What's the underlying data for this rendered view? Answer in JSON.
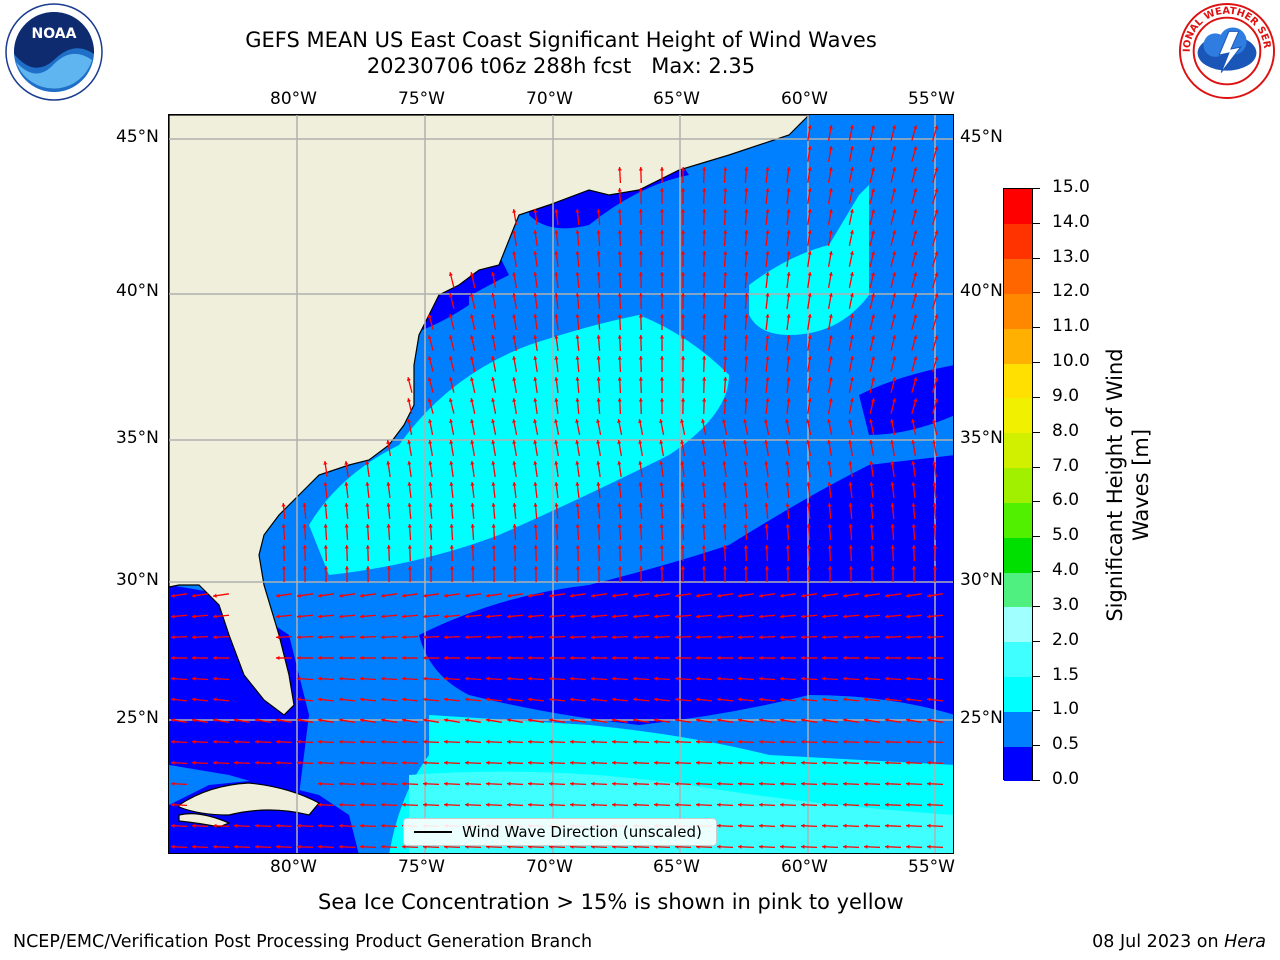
{
  "header": {
    "title_line1": "GEFS MEAN US East Coast Significant Height of Wind Waves",
    "title_line2": "20230706 t06z 288h fcst   Max: 2.35"
  },
  "logos": {
    "noaa": {
      "icon": "noaa-logo-icon",
      "text": "NOAA",
      "ring_text": "NATIONAL OCEANIC AND ATMOSPHERIC ADMINISTRATION · U.S. DEPARTMENT OF COMMERCE"
    },
    "nws": {
      "icon": "nws-logo-icon",
      "ring_text": "NATIONAL WEATHER SERVICE"
    }
  },
  "map": {
    "lon_labels": [
      "80°W",
      "75°W",
      "70°W",
      "65°W",
      "60°W",
      "55°W"
    ],
    "lat_labels": [
      "45°N",
      "40°N",
      "35°N",
      "30°N",
      "25°N"
    ],
    "legend_label": "Wind Wave Direction (unscaled)",
    "colors": {
      "land": "#efefdc",
      "coast": "#000000",
      "grid": "#b0b0b0",
      "arrows": "#ff0000"
    }
  },
  "colorbar": {
    "label": "Significant Height of Wind Waves [m]",
    "label_line1": "Significant Height of Wind",
    "label_line2": "Waves [m]",
    "ticks": [
      "0.0",
      "0.5",
      "1.0",
      "1.5",
      "2.0",
      "3.0",
      "4.0",
      "5.0",
      "6.0",
      "7.0",
      "8.0",
      "9.0",
      "10.0",
      "11.0",
      "12.0",
      "13.0",
      "14.0",
      "15.0"
    ],
    "colors": [
      "#0000ff",
      "#0080ff",
      "#00ffff",
      "#40ffff",
      "#a0ffff",
      "#50f080",
      "#00e000",
      "#50f000",
      "#a0f000",
      "#d0f000",
      "#f0f000",
      "#ffe000",
      "#ffb000",
      "#ff8800",
      "#ff6600",
      "#ff3300",
      "#ff0000"
    ]
  },
  "notes": {
    "ice": "Sea Ice Concentration > 15% is shown in pink to yellow"
  },
  "footer": {
    "left": "NCEP/EMC/Verification Post Processing Product Generation Branch",
    "right_prefix": "08 Jul 2023 on ",
    "right_machine": "Hera"
  }
}
